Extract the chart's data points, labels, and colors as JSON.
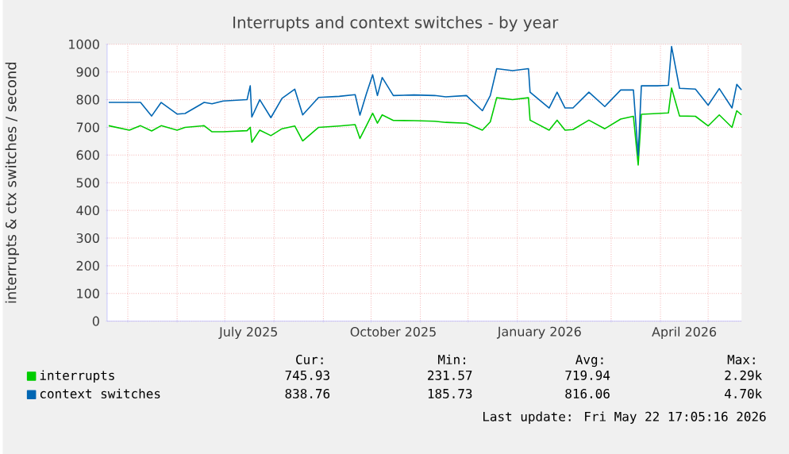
{
  "chart_data": {
    "type": "line",
    "title": "Interrupts and context switches - by year",
    "ylabel": "interrupts & ctx switches / second",
    "x": [
      "2025-04-19",
      "2025-05-02",
      "2025-05-09",
      "2025-05-16",
      "2025-05-22",
      "2025-06-01",
      "2025-06-06",
      "2025-06-18",
      "2025-06-23",
      "2025-06-30",
      "2025-07-15",
      "2025-07-17",
      "2025-07-18",
      "2025-07-23",
      "2025-07-30",
      "2025-08-06",
      "2025-08-14",
      "2025-08-19",
      "2025-08-29",
      "2025-09-11",
      "2025-09-21",
      "2025-09-24",
      "2025-09-28",
      "2025-10-02",
      "2025-10-05",
      "2025-10-08",
      "2025-10-15",
      "2025-10-28",
      "2025-11-10",
      "2025-11-17",
      "2025-11-30",
      "2025-12-10",
      "2025-12-15",
      "2025-12-19",
      "2025-12-29",
      "2026-01-08",
      "2026-01-09",
      "2026-01-21",
      "2026-01-26",
      "2026-01-31",
      "2026-02-05",
      "2026-02-15",
      "2026-02-25",
      "2026-03-07",
      "2026-03-15",
      "2026-03-18",
      "2026-03-20",
      "2026-03-30",
      "2026-04-06",
      "2026-04-08",
      "2026-04-13",
      "2026-04-23",
      "2026-05-01",
      "2026-05-08",
      "2026-05-16",
      "2026-05-19",
      "2026-05-22"
    ],
    "series": [
      {
        "name": "interrupts",
        "color": "#00cc00",
        "values": [
          706,
          690,
          706,
          687,
          706,
          690,
          700,
          706,
          684,
          684,
          688,
          700,
          646,
          690,
          670,
          695,
          705,
          651,
          700,
          705,
          710,
          660,
          705,
          751,
          715,
          745,
          725,
          724,
          722,
          718,
          715,
          690,
          720,
          807,
          800,
          807,
          726,
          690,
          726,
          690,
          692,
          726,
          695,
          730,
          740,
          564,
          747,
          750,
          752,
          842,
          741,
          740,
          705,
          745,
          700,
          760,
          745
        ]
      },
      {
        "name": "context switches",
        "color": "#0066b3",
        "values": [
          790,
          790,
          790,
          741,
          790,
          748,
          750,
          790,
          785,
          795,
          800,
          850,
          737,
          800,
          735,
          805,
          838,
          745,
          808,
          812,
          818,
          744,
          820,
          890,
          815,
          880,
          815,
          817,
          815,
          810,
          815,
          760,
          815,
          912,
          905,
          912,
          827,
          770,
          827,
          770,
          770,
          827,
          775,
          835,
          835,
          598,
          850,
          850,
          852,
          992,
          841,
          838,
          780,
          840,
          770,
          855,
          835
        ]
      }
    ],
    "xlim": [
      "2025-04-18",
      "2026-05-22"
    ],
    "xticks": [
      {
        "value": "2025-05-01",
        "label": null
      },
      {
        "value": "2025-06-01",
        "label": null
      },
      {
        "value": "2025-07-01",
        "label": null
      },
      {
        "value": "2025-08-01",
        "label": null
      },
      {
        "value": "2025-09-01",
        "label": null
      },
      {
        "value": "2025-10-01",
        "label": null
      },
      {
        "value": "2025-11-01",
        "label": null
      },
      {
        "value": "2025-12-01",
        "label": null
      },
      {
        "value": "2026-01-01",
        "label": null
      },
      {
        "value": "2026-02-01",
        "label": null
      },
      {
        "value": "2026-03-01",
        "label": null
      },
      {
        "value": "2026-04-01",
        "label": null
      },
      {
        "value": "2026-05-01",
        "label": null
      },
      {
        "value": "2025-07-16",
        "label": "July 2025"
      },
      {
        "value": "2025-10-15",
        "label": "October 2025"
      },
      {
        "value": "2026-01-15",
        "label": "January 2026"
      },
      {
        "value": "2026-04-16",
        "label": "April 2026"
      }
    ],
    "ylim": [
      0,
      1000
    ],
    "yticks": [
      0,
      100,
      200,
      300,
      400,
      500,
      600,
      700,
      800,
      900,
      1000
    ],
    "grid": true,
    "legend": "bottom",
    "marker": "none",
    "line_style": "solid",
    "annotations": [
      "Cur:",
      "Min:",
      "Avg:",
      "Max:",
      "745.93",
      "231.57",
      "719.94",
      "2.29k",
      "838.76",
      "185.73",
      "816.06",
      "4.70k",
      "Last update: Fri May 22 17:05:16 2026"
    ]
  }
}
